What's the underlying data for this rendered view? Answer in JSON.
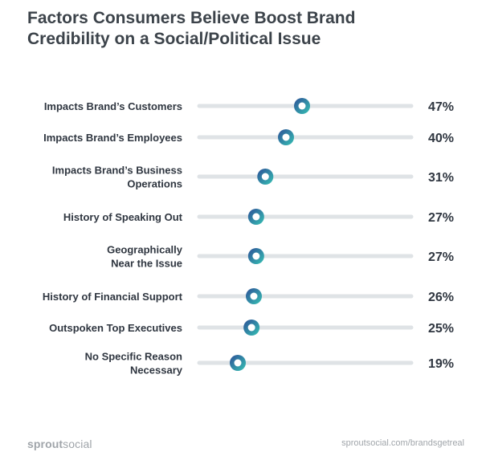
{
  "title_line1": "Factors Consumers Believe Boost Brand",
  "title_line2": "Credibility on a Social/Political Issue",
  "footer": {
    "logo_bold": "sprout",
    "logo_rest": "social",
    "url": "sproutsocial.com/brandsgetreal"
  },
  "colors": {
    "track": "#dfe3e6",
    "dot_start": "#2d4f97",
    "dot_end": "#36c2b4",
    "label": "#2f3640"
  },
  "chart_data": {
    "type": "dot",
    "title": "Factors Consumers Believe Boost Brand Credibility on a Social/Political Issue",
    "xlim": [
      0,
      100
    ],
    "categories": [
      [
        "Impacts Brand’s Customers"
      ],
      [
        "Impacts Brand’s Employees"
      ],
      [
        "Impacts Brand’s Business",
        "Operations"
      ],
      [
        "History of Speaking Out"
      ],
      [
        "Geographically",
        "Near the Issue"
      ],
      [
        "History of Financial Support"
      ],
      [
        "Outspoken Top Executives"
      ],
      [
        "No Specific Reason",
        "Necessary"
      ]
    ],
    "values": [
      47,
      40,
      31,
      27,
      27,
      26,
      25,
      19
    ],
    "value_labels": [
      "47%",
      "40%",
      "31%",
      "27%",
      "27%",
      "26%",
      "25%",
      "19%"
    ]
  }
}
